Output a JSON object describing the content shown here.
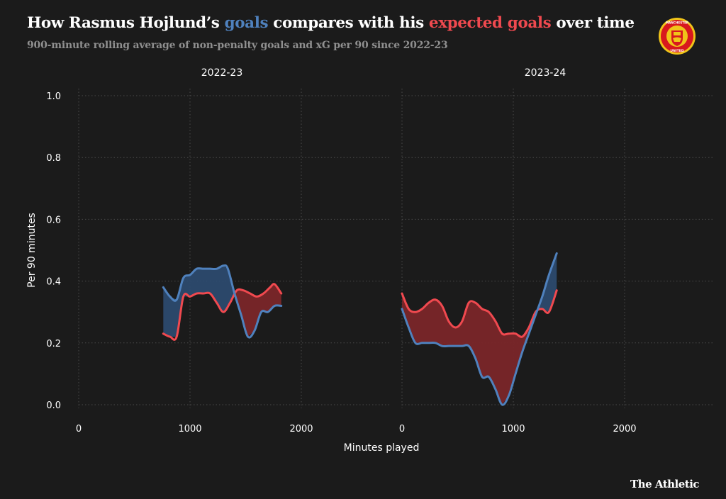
{
  "header": {
    "title_parts": [
      {
        "text": "How Rasmus Hojlund’s ",
        "color": "#ffffff"
      },
      {
        "text": "goals",
        "color": "#4f81bd"
      },
      {
        "text": " compares with his ",
        "color": "#ffffff"
      },
      {
        "text": "expected goals",
        "color": "#f0494f"
      },
      {
        "text": " over time",
        "color": "#ffffff"
      }
    ],
    "subtitle": "900-minute rolling average of non-penalty goals and xG per 90 since 2022-23"
  },
  "badge": {
    "top_text": "MANCHESTER",
    "bottom_text": "UNITED"
  },
  "brand": "The Athletic",
  "colors": {
    "goals": "#4f81bd",
    "xg": "#f0494f",
    "goals_fill": "#2c4a6e",
    "xg_fill": "#7a2629",
    "grid": "#4a4a4a",
    "text": "#ffffff"
  },
  "chart_data": {
    "type": "line",
    "ylabel": "Per 90 minutes",
    "xlabel": "Minutes played",
    "ylim": [
      0,
      1.0
    ],
    "yticks": [
      "0.0",
      "0.2",
      "0.4",
      "0.6",
      "0.8",
      "1.0"
    ],
    "panels": [
      {
        "title": "2022-23",
        "xlim": [
          0,
          2800
        ],
        "xticks": [
          "0",
          "1000",
          "2000"
        ],
        "series": [
          {
            "name": "Goals",
            "x": [
              760,
              820,
              880,
              940,
              1000,
              1060,
              1120,
              1180,
              1240,
              1300,
              1340,
              1400,
              1460,
              1520,
              1580,
              1640,
              1700,
              1760,
              1820
            ],
            "y": [
              0.38,
              0.35,
              0.34,
              0.41,
              0.42,
              0.44,
              0.44,
              0.44,
              0.44,
              0.45,
              0.44,
              0.36,
              0.29,
              0.22,
              0.24,
              0.3,
              0.3,
              0.32,
              0.32
            ]
          },
          {
            "name": "xG",
            "x": [
              760,
              820,
              880,
              940,
              1000,
              1060,
              1120,
              1180,
              1240,
              1300,
              1360,
              1420,
              1480,
              1540,
              1600,
              1660,
              1720,
              1760,
              1820
            ],
            "y": [
              0.23,
              0.22,
              0.22,
              0.35,
              0.35,
              0.36,
              0.36,
              0.36,
              0.33,
              0.3,
              0.33,
              0.37,
              0.37,
              0.36,
              0.35,
              0.36,
              0.38,
              0.39,
              0.36
            ]
          }
        ]
      },
      {
        "title": "2023-24",
        "xlim": [
          0,
          2800
        ],
        "xticks": [
          "0",
          "1000",
          "2000"
        ],
        "series": [
          {
            "name": "Goals",
            "x": [
              0,
              60,
              120,
              180,
              240,
              300,
              360,
              420,
              480,
              540,
              600,
              660,
              720,
              780,
              840,
              900,
              960,
              1020,
              1080,
              1140,
              1200,
              1260,
              1320,
              1390
            ],
            "y": [
              0.31,
              0.25,
              0.2,
              0.2,
              0.2,
              0.2,
              0.19,
              0.19,
              0.19,
              0.19,
              0.19,
              0.15,
              0.09,
              0.09,
              0.05,
              0.0,
              0.03,
              0.1,
              0.17,
              0.23,
              0.29,
              0.35,
              0.42,
              0.49
            ]
          },
          {
            "name": "xG",
            "x": [
              0,
              60,
              120,
              180,
              240,
              300,
              360,
              420,
              480,
              540,
              600,
              660,
              720,
              780,
              840,
              900,
              960,
              1020,
              1080,
              1140,
              1200,
              1260,
              1320,
              1390
            ],
            "y": [
              0.36,
              0.31,
              0.3,
              0.31,
              0.33,
              0.34,
              0.32,
              0.27,
              0.25,
              0.27,
              0.33,
              0.33,
              0.31,
              0.3,
              0.27,
              0.23,
              0.23,
              0.23,
              0.22,
              0.25,
              0.3,
              0.31,
              0.3,
              0.37
            ]
          }
        ]
      }
    ]
  }
}
